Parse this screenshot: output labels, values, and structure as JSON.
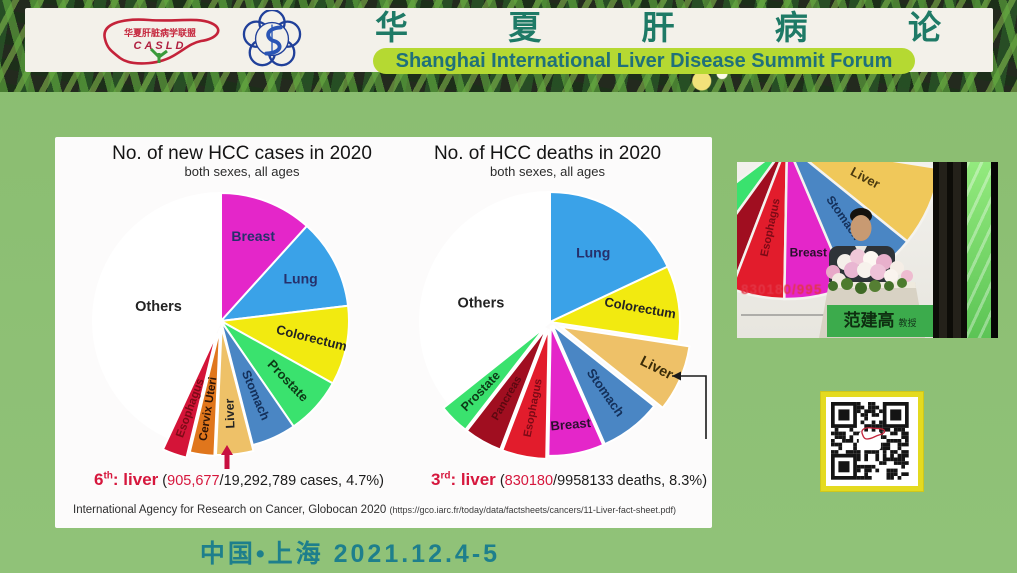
{
  "header": {
    "casld_logo": {
      "name_cn": "华夏肝脏病学联盟",
      "abbr": "CASLD"
    },
    "title_cn": "华 夏 肝 病 论 坛",
    "subtitle_en": "Shanghai International Liver Disease Summit Forum"
  },
  "slide": {
    "source": "International Agency for Research on Cancer, Globocan 2020",
    "source_url": "(https://gco.iarc.fr/today/data/factsheets/cancers/11-Liver-fact-sheet.pdf)"
  },
  "chart_data": [
    {
      "type": "pie",
      "title": "No. of new HCC cases in 2020",
      "subtitle": "both sexes, all ages",
      "legend_position": "inside",
      "slices": [
        {
          "label": "Breast",
          "pct": 11.7,
          "color": "#e426c9",
          "label_color": "#26306b",
          "rot": 0,
          "lr": 0.7,
          "fs": 14
        },
        {
          "label": "Lung",
          "pct": 11.4,
          "color": "#3aa2e8",
          "label_color": "#26306b",
          "rot": 0,
          "lr": 0.7,
          "fs": 14
        },
        {
          "label": "Colorectum",
          "pct": 10.0,
          "color": "#f2ea10",
          "label_color": "#232323",
          "rot": 14,
          "lr": 0.72,
          "fs": 13
        },
        {
          "label": "Prostate",
          "pct": 7.3,
          "color": "#3ae26e",
          "label_color": "#0c3a16",
          "rot": 46,
          "lr": 0.7,
          "fs": 13
        },
        {
          "label": "Stomach",
          "pct": 5.6,
          "color": "#4a86c4",
          "label_color": "#14305a",
          "rot": 67,
          "lr": 0.64,
          "fs": 12.5
        },
        {
          "label": "Liver",
          "pct": 4.7,
          "color": "#eec168",
          "label_color": "#232323",
          "rot": -92,
          "lr": 0.68,
          "fs": 12.5,
          "explode": 6
        },
        {
          "label": "Cervix Uteri",
          "pct": 3.1,
          "color": "#e0761c",
          "label_color": "#2e1406",
          "rot": -81,
          "lr": 0.64,
          "fs": 11.5,
          "explode": 7
        },
        {
          "label": "Esophagus",
          "pct": 3.1,
          "color": "#d41438",
          "label_color": "#7c0a16",
          "rot": -70,
          "lr": 0.62,
          "fs": 11.5,
          "explode": 13
        },
        {
          "label": "Others",
          "pct": 43.1,
          "color": "#ffffff",
          "label_color": "#232323",
          "rot": 0,
          "lr": 0.5,
          "fs": 14.5
        }
      ],
      "annotation": {
        "rank": "6",
        "sup": "th",
        "organ": ": liver",
        "paren": " (",
        "value": "905,677",
        "rest": "/19,292,789 cases, 4.7%)"
      }
    },
    {
      "type": "pie",
      "title": "No. of HCC deaths in 2020",
      "subtitle": "both sexes, all ages",
      "legend_position": "inside",
      "slices": [
        {
          "label": "Lung",
          "pct": 18.0,
          "color": "#3aa2e8",
          "label_color": "#26306b",
          "rot": 0,
          "lr": 0.62,
          "fs": 14
        },
        {
          "label": "Colorectum",
          "pct": 9.4,
          "color": "#f2ea10",
          "label_color": "#232323",
          "rot": 10,
          "lr": 0.7,
          "fs": 13
        },
        {
          "label": "Liver",
          "pct": 8.3,
          "color": "#eec168",
          "label_color": "#3a2c08",
          "rot": 27,
          "lr": 0.8,
          "fs": 14.5,
          "explode": 12
        },
        {
          "label": "Stomach",
          "pct": 7.7,
          "color": "#4a86c4",
          "label_color": "#14305a",
          "rot": 55,
          "lr": 0.66,
          "fs": 13,
          "explode": 4
        },
        {
          "label": "Breast",
          "pct": 6.9,
          "color": "#e426c9",
          "label_color": "#2c1030",
          "rot": -5,
          "lr": 0.78,
          "fs": 13,
          "explode": 4
        },
        {
          "label": "Esophagus",
          "pct": 5.5,
          "color": "#e21c2c",
          "label_color": "#7c0a16",
          "rot": -79,
          "lr": 0.62,
          "fs": 11,
          "explode": 7
        },
        {
          "label": "Pancreas",
          "pct": 4.7,
          "color": "#a00e20",
          "label_color": "#5c0810",
          "rot": -60,
          "lr": 0.62,
          "fs": 11,
          "explode": 7
        },
        {
          "label": "Prostate",
          "pct": 3.8,
          "color": "#3ae26e",
          "label_color": "#0c3a16",
          "rot": -46,
          "lr": 0.7,
          "fs": 12.5,
          "explode": 7
        },
        {
          "label": "Others",
          "pct": 35.7,
          "color": "#ffffff",
          "label_color": "#232323",
          "rot": 0,
          "lr": 0.55,
          "fs": 14.5,
          "label_angle": 285
        }
      ],
      "annotation": {
        "rank": "3",
        "sup": "rd",
        "organ": ": liver",
        "paren": " (",
        "value": "830180",
        "rest": "/9958133 deaths, 8.3%)"
      }
    }
  ],
  "video": {
    "screen_value": "830180/995",
    "sign_name": "范建高",
    "sign_title": "教授",
    "mini_pie": {
      "slices": [
        {
          "label": "",
          "from": 216,
          "to": 233,
          "color": "#3ae26e"
        },
        {
          "label": "",
          "from": 201,
          "to": 216,
          "color": "#a00e20"
        },
        {
          "label": "Esophagus",
          "from": 181,
          "to": 201,
          "color": "#e21c2c",
          "rot": -78,
          "lr": 0.55,
          "fs": 11,
          "label_color": "#7c0a16"
        },
        {
          "label": "Breast",
          "from": 157,
          "to": 181,
          "color": "#e426c9",
          "rot": 0,
          "lr": 0.72,
          "fs": 12,
          "label_color": "#28102c"
        },
        {
          "label": "Stomach",
          "from": 129,
          "to": 157,
          "color": "#4a86c4",
          "rot": 55,
          "lr": 0.6,
          "fs": 12,
          "label_color": "#14305a"
        },
        {
          "label": "Liver",
          "from": 99,
          "to": 129,
          "color": "#f0c85a",
          "rot": 28,
          "lr": 0.55,
          "fs": 13,
          "label_color": "#4a3a10"
        }
      ]
    }
  },
  "footer_date": "中国•上海 2021.12.4-5",
  "colors": {
    "body_green": "#8cbf72",
    "banner_bg": "#f3f1ea",
    "accent_teal": "#1e7a66",
    "pill_green": "#b5d932",
    "date_teal": "#1e7f8c",
    "annotation_red": "#d6173d",
    "qr_frame_yellow": "#e4da1f"
  }
}
